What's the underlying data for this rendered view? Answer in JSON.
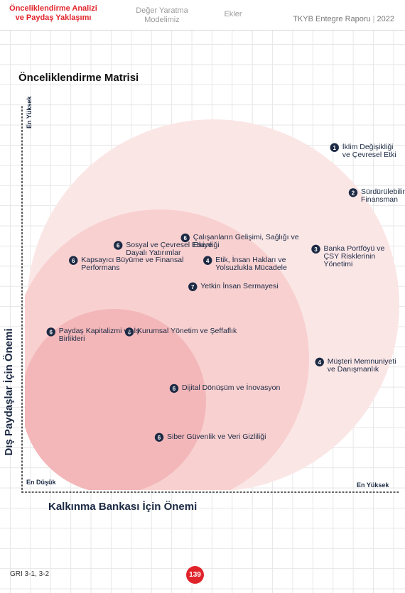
{
  "header": {
    "nav_active": "Önceliklendirme Analizi ve Paydaş Yaklaşımı",
    "nav_value_model": "Değer Yaratma Modelimiz",
    "nav_appendix": "Ekler",
    "report_title": "TKYB Entegre Raporu",
    "report_year": "2022"
  },
  "page": {
    "title": "Önceliklendirme Matrisi",
    "footer_ref": "GRI 3-1, 3-2",
    "page_number": "139"
  },
  "colors": {
    "accent": "#e0242b",
    "navy": "#1c2a44",
    "circle_light": "#fbe6e6",
    "circle_mid": "#f8d0d0",
    "circle_dark": "#f3b7b9"
  },
  "chart_data": {
    "type": "scatter",
    "title": "Önceliklendirme Matrisi",
    "xlabel": "Kalkınma Bankası İçin Önemi",
    "ylabel": "Dış Paydaşlar İçin Önemi",
    "x_low_label": "En Düşük",
    "x_high_label": "En Yüksek",
    "y_high_label": "En Yüksek",
    "xlim": [
      0,
      10
    ],
    "ylim": [
      0,
      10
    ],
    "grid": true,
    "points": [
      {
        "badge": "1",
        "label": "İklim Değişikliği ve Çevresel Etki",
        "x": 8.3,
        "y": 9.1
      },
      {
        "badge": "2",
        "label": "Sürdürülebilir Finansman",
        "x": 8.8,
        "y": 7.9
      },
      {
        "badge": "3",
        "label": "Banka Portföyü ve ÇSY Risklerinin Yönetimi",
        "x": 7.8,
        "y": 6.4
      },
      {
        "badge": "6",
        "label": "Çalışanların Gelişimi, Sağlığı ve Esenliği",
        "x": 4.3,
        "y": 6.7
      },
      {
        "badge": "4",
        "label": "Etik, İnsan Hakları ve Yolsuzlukla Mücadele",
        "x": 4.9,
        "y": 6.1
      },
      {
        "badge": "6",
        "label": "Sosyal ve Çevresel Etkiye Dayalı Yatırımlar",
        "x": 2.5,
        "y": 6.5
      },
      {
        "badge": "6",
        "label": "Kapsayıcı Büyüme ve Finansal Performans",
        "x": 1.3,
        "y": 6.1
      },
      {
        "badge": "7",
        "label": "Yetkin İnsan Sermayesi",
        "x": 4.5,
        "y": 5.4
      },
      {
        "badge": "6",
        "label": "Paydaş Kapitalizmi ve İş Birlikleri",
        "x": 0.7,
        "y": 4.2
      },
      {
        "badge": "6",
        "label": "Kurumsal Yönetim ve Şeffaflık",
        "x": 2.8,
        "y": 4.2
      },
      {
        "badge": "4",
        "label": "Müşteri Memnuniyeti ve Danışmanlık",
        "x": 7.9,
        "y": 3.4
      },
      {
        "badge": "6",
        "label": "Dijital Dönüşüm ve İnovasyon",
        "x": 4.0,
        "y": 2.7
      },
      {
        "badge": "6",
        "label": "Siber Güvenlik ve Veri Gizliliği",
        "x": 3.6,
        "y": 1.4
      }
    ]
  }
}
